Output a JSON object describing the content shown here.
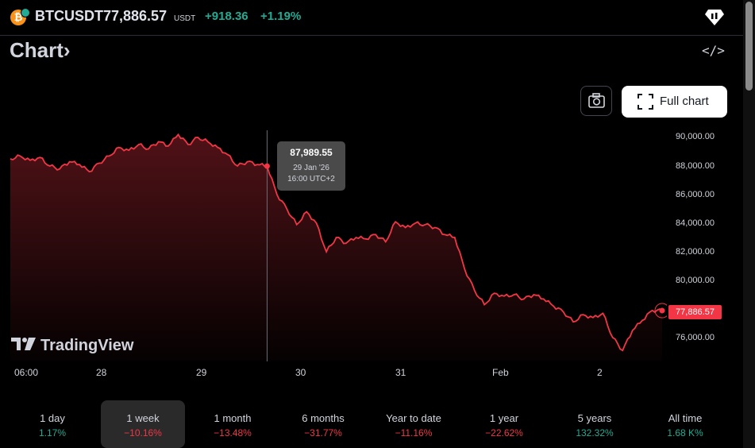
{
  "header": {
    "symbol": "BTCUSDT",
    "price": "77,886.57",
    "currency": "USDT",
    "change": "+918.36",
    "change_percent": "+1.19%",
    "coin_icon": "bitcoin-icon",
    "coin_glyph": "₿"
  },
  "section": {
    "title": "Chart",
    "chevron": "›",
    "embed_icon": "code-icon",
    "embed_glyph": "</>"
  },
  "buttons": {
    "snapshot_icon": "camera-icon",
    "full_chart_label": "Full chart"
  },
  "tooltip": {
    "value": "87,989.55",
    "date": "29 Jan '26",
    "time": "16:00 UTC+2"
  },
  "current_price_label": "77,886.57",
  "brand": {
    "name": "TradingView"
  },
  "colors": {
    "line": "#f23645",
    "up": "#22ab94",
    "down": "#f23645"
  },
  "chart_data": {
    "type": "area",
    "y_ticks": [
      "90,000.00",
      "88,000.00",
      "86,000.00",
      "84,000.00",
      "82,000.00",
      "80,000.00",
      "76,000.00"
    ],
    "ylim": [
      74500,
      91000
    ],
    "x_ticks": [
      "06:00",
      "28",
      "29",
      "30",
      "31",
      "Feb",
      "2"
    ],
    "series": [
      {
        "values": [
          88500,
          88700,
          88400,
          88600,
          88000,
          87800,
          88300,
          88100,
          87600,
          88200,
          88700,
          89300,
          89100,
          89500,
          89200,
          89700,
          89400,
          90200,
          89500,
          90000,
          89700,
          89300,
          88800,
          88000,
          88300,
          88100,
          87990,
          86000,
          85000,
          83900,
          84800,
          84000,
          82000,
          83000,
          82600,
          83000,
          82900,
          83200,
          82700,
          84100,
          83700,
          84000,
          83900,
          83700,
          83200,
          83000,
          80800,
          79300,
          78300,
          79100,
          78900,
          79000,
          78700,
          79000,
          78700,
          78200,
          77800,
          77100,
          77600,
          77400,
          77700,
          76000,
          75100,
          76500,
          77200,
          77900,
          77886
        ]
      }
    ]
  },
  "periods": [
    {
      "label": "1 day",
      "value": "1.17%",
      "dir": "up"
    },
    {
      "label": "1 week",
      "value": "−10.16%",
      "dir": "down",
      "active": true
    },
    {
      "label": "1 month",
      "value": "−13.48%",
      "dir": "down"
    },
    {
      "label": "6 months",
      "value": "−31.77%",
      "dir": "down"
    },
    {
      "label": "Year to date",
      "value": "−11.16%",
      "dir": "down"
    },
    {
      "label": "1 year",
      "value": "−22.62%",
      "dir": "down"
    },
    {
      "label": "5 years",
      "value": "132.32%",
      "dir": "up"
    },
    {
      "label": "All time",
      "value": "1.68 K%",
      "dir": "up"
    }
  ]
}
